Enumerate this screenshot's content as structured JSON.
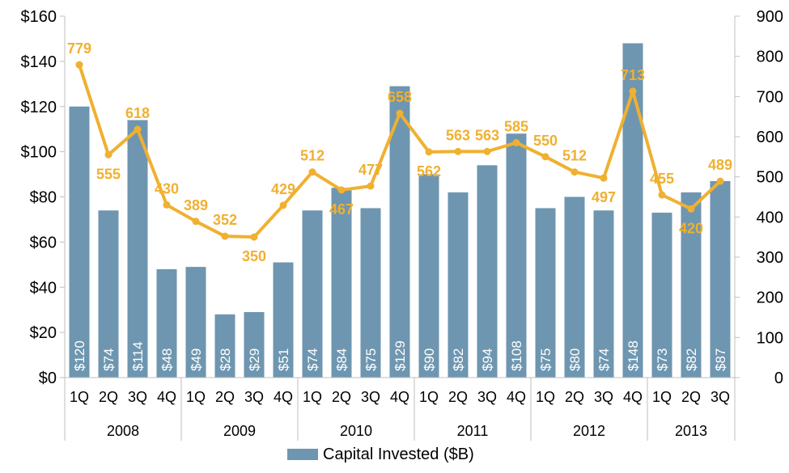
{
  "chart_data": {
    "type": "bar",
    "categories": [
      "1Q",
      "2Q",
      "3Q",
      "4Q",
      "1Q",
      "2Q",
      "3Q",
      "4Q",
      "1Q",
      "2Q",
      "3Q",
      "4Q",
      "1Q",
      "2Q",
      "3Q",
      "4Q",
      "1Q",
      "2Q",
      "3Q",
      "4Q",
      "1Q",
      "2Q",
      "3Q"
    ],
    "groups": [
      {
        "label": "2008",
        "count": 4
      },
      {
        "label": "2009",
        "count": 4
      },
      {
        "label": "2010",
        "count": 4
      },
      {
        "label": "2011",
        "count": 4
      },
      {
        "label": "2012",
        "count": 4
      },
      {
        "label": "2013",
        "count": 3
      }
    ],
    "series": [
      {
        "name": "Capital Invested ($B)",
        "type": "bar",
        "axis": "left",
        "color": "#6e96b0",
        "values": [
          120,
          74,
          114,
          48,
          49,
          28,
          29,
          51,
          74,
          84,
          75,
          129,
          90,
          82,
          94,
          108,
          75,
          80,
          74,
          148,
          73,
          82,
          87
        ],
        "labels": [
          "$120",
          "$74",
          "$114",
          "$48",
          "$49",
          "$28",
          "$29",
          "$51",
          "$74",
          "$84",
          "$75",
          "$129",
          "$90",
          "$82",
          "$94",
          "$108",
          "$75",
          "$80",
          "$74",
          "$148",
          "$73",
          "$82",
          "$87"
        ]
      },
      {
        "type": "line",
        "axis": "right",
        "color": "#f0b030",
        "values": [
          779,
          555,
          618,
          430,
          389,
          352,
          350,
          429,
          512,
          467,
          477,
          658,
          562,
          563,
          563,
          585,
          550,
          512,
          497,
          713,
          455,
          420,
          489
        ],
        "labels": [
          "779",
          "555",
          "618",
          "430",
          "389",
          "352",
          "350",
          "429",
          "512",
          "467",
          "477",
          "658",
          "562",
          "563",
          "563",
          "585",
          "550",
          "512",
          "497",
          "713",
          "455",
          "420",
          "489"
        ]
      }
    ],
    "y_left": {
      "range": [
        0,
        160
      ],
      "ticks": [
        "$0",
        "$20",
        "$40",
        "$60",
        "$80",
        "$100",
        "$120",
        "$140",
        "$160"
      ]
    },
    "y_right": {
      "range": [
        0,
        900
      ],
      "ticks": [
        "0",
        "100",
        "200",
        "300",
        "400",
        "500",
        "600",
        "700",
        "800",
        "900"
      ]
    },
    "grid": false,
    "legend": {
      "position": "bottom",
      "entries": [
        "Capital Invested ($B)"
      ]
    }
  }
}
